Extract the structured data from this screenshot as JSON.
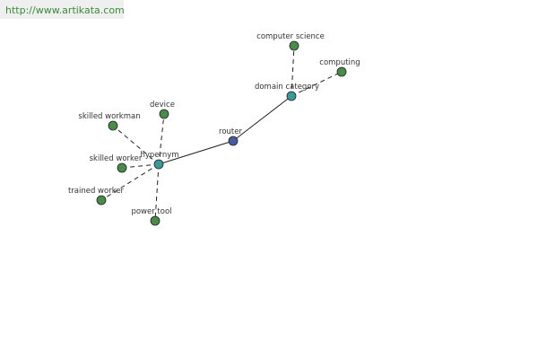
{
  "header": {
    "url": "http://www.artikata.com"
  },
  "nodes": [
    {
      "label": "router"
    },
    {
      "label": "hypernym"
    },
    {
      "label": "domain category"
    },
    {
      "label": "computer science"
    },
    {
      "label": "computing"
    },
    {
      "label": "device"
    },
    {
      "label": "skilled workman"
    },
    {
      "label": "skilled worker"
    },
    {
      "label": "trained worker"
    },
    {
      "label": "power tool"
    }
  ]
}
